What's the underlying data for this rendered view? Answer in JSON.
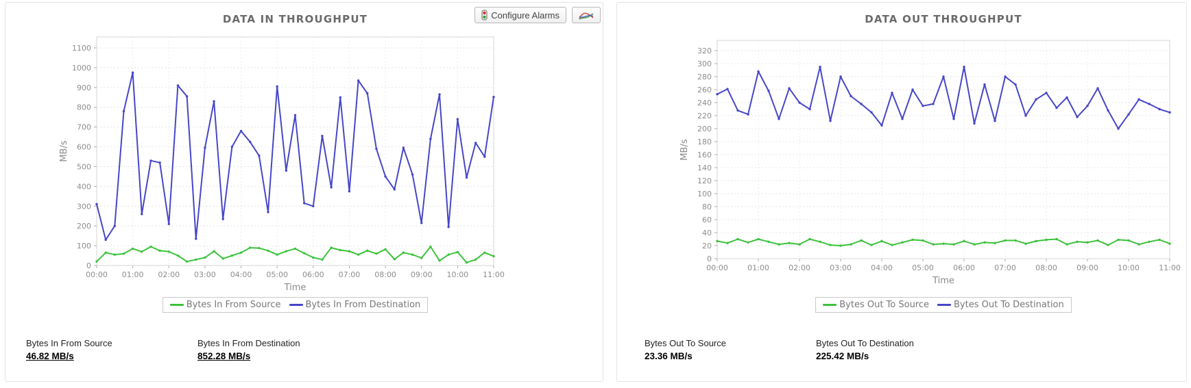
{
  "toolbar": {
    "configure_alarms_label": "Configure Alarms"
  },
  "colors": {
    "source_green": "#3cc23c",
    "destination_blue": "#4646c8",
    "title_gray": "#6a6a6a",
    "axis_text_gray": "#8c8c8c",
    "panel_border": "#e3e3e3"
  },
  "chart_data": [
    {
      "type": "line",
      "title": "DATA IN THROUGHPUT",
      "xlabel": "Time",
      "ylabel": "MB/s",
      "ylim": [
        0,
        1100
      ],
      "ytick_step": 100,
      "grid": true,
      "legend_position": "bottom",
      "x_ticks": [
        "00:00",
        "01:00",
        "02:00",
        "03:00",
        "04:00",
        "05:00",
        "06:00",
        "07:00",
        "08:00",
        "09:00",
        "10:00",
        "11:00"
      ],
      "series": [
        {
          "name": "Bytes In From Source",
          "color": "#3cc23c",
          "values": [
            20,
            65,
            55,
            60,
            85,
            70,
            95,
            75,
            70,
            50,
            20,
            30,
            40,
            72,
            35,
            50,
            65,
            90,
            88,
            75,
            55,
            72,
            85,
            62,
            40,
            30,
            90,
            78,
            72,
            55,
            75,
            60,
            82,
            32,
            65,
            55,
            38,
            95,
            25,
            55,
            68,
            15,
            30,
            65,
            47
          ]
        },
        {
          "name": "Bytes In From Destination",
          "color": "#4646c8",
          "values": [
            310,
            130,
            200,
            780,
            975,
            260,
            530,
            520,
            210,
            910,
            855,
            135,
            595,
            830,
            235,
            600,
            680,
            625,
            555,
            270,
            905,
            480,
            760,
            315,
            300,
            655,
            395,
            850,
            375,
            935,
            870,
            590,
            450,
            385,
            595,
            460,
            215,
            640,
            865,
            195,
            740,
            445,
            620,
            550,
            852
          ]
        }
      ]
    },
    {
      "type": "line",
      "title": "DATA OUT THROUGHPUT",
      "xlabel": "Time",
      "ylabel": "MB/s",
      "ylim": [
        0,
        320
      ],
      "ytick_step": 20,
      "grid": true,
      "legend_position": "bottom",
      "x_ticks": [
        "00:00",
        "01:00",
        "02:00",
        "03:00",
        "04:00",
        "05:00",
        "06:00",
        "07:00",
        "08:00",
        "09:00",
        "10:00",
        "11:00"
      ],
      "series": [
        {
          "name": "Bytes Out To Source",
          "color": "#3cc23c",
          "values": [
            27,
            24,
            30,
            25,
            30,
            26,
            22,
            24,
            22,
            30,
            26,
            21,
            20,
            22,
            28,
            21,
            27,
            21,
            25,
            29,
            28,
            22,
            23,
            22,
            27,
            22,
            25,
            24,
            28,
            28,
            23,
            27,
            29,
            30,
            22,
            26,
            25,
            28,
            21,
            29,
            28,
            22,
            26,
            29,
            23
          ]
        },
        {
          "name": "Bytes Out To Destination",
          "color": "#4646c8",
          "values": [
            253,
            261,
            228,
            222,
            288,
            258,
            215,
            262,
            240,
            230,
            295,
            212,
            280,
            250,
            238,
            225,
            205,
            255,
            215,
            260,
            235,
            238,
            280,
            215,
            295,
            208,
            268,
            212,
            280,
            268,
            220,
            245,
            255,
            232,
            248,
            218,
            235,
            262,
            228,
            200,
            222,
            245,
            238,
            230,
            225
          ]
        }
      ]
    }
  ],
  "stats": {
    "left": [
      {
        "label": "Bytes In From Source",
        "value": "46.82 MB/s"
      },
      {
        "label": "Bytes In From Destination",
        "value": "852.28 MB/s"
      }
    ],
    "right": [
      {
        "label": "Bytes Out To Source",
        "value": "23.36 MB/s"
      },
      {
        "label": "Bytes Out To Destination",
        "value": "225.42 MB/s"
      }
    ]
  }
}
